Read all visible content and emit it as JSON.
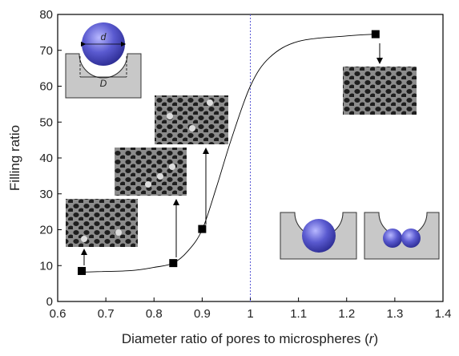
{
  "chart_data": {
    "type": "scatter",
    "xlabel": [
      "Diameter ratio of pores to microspheres (",
      "r",
      ")"
    ],
    "ylabel": "Filling ratio",
    "xlim": [
      0.6,
      1.4
    ],
    "xticks": [
      0.6,
      0.7,
      0.8,
      0.9,
      1.0,
      1.1,
      1.2,
      1.3,
      1.4
    ],
    "ylim": [
      0,
      80
    ],
    "yticks": [
      0,
      10,
      20,
      30,
      40,
      50,
      60,
      70,
      80
    ],
    "vline": 1.0,
    "vline_color": "#5b5bd6",
    "annotations": [
      "d",
      "D"
    ],
    "series": [
      {
        "x": [
          0.65,
          0.84,
          0.9,
          1.26
        ],
        "values": [
          8.5,
          10.7,
          20.2,
          74.5
        ],
        "color": "#000000",
        "marker": "square"
      },
      {
        "x": [
          0.65,
          0.75,
          0.8,
          0.84,
          0.87,
          0.9,
          0.93,
          0.96,
          1.0,
          1.04,
          1.1,
          1.2,
          1.26
        ],
        "values": [
          8.2,
          8.6,
          9.5,
          10.7,
          14,
          20,
          32,
          45,
          60,
          68,
          72.5,
          74,
          74.5
        ],
        "color": "#000000",
        "style": "line"
      }
    ]
  }
}
